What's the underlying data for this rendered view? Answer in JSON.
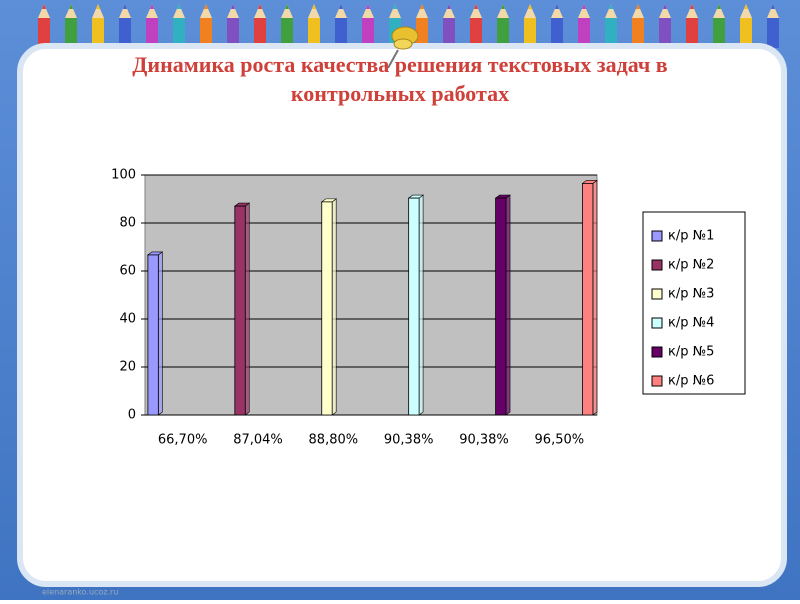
{
  "title_lines": [
    "Динамика роста качества решения текстовых задач в",
    "контрольных работах"
  ],
  "footer": "elenaranko.ucoz.ru",
  "chart_data": {
    "type": "bar",
    "categories": [
      "66,70%",
      "87,04%",
      "88,80%",
      "90,38%",
      "90,38%",
      "96,50%"
    ],
    "series": [
      {
        "name": "к/р №1",
        "color": "#9999ff",
        "values": [
          66.7,
          null,
          null,
          null,
          null,
          null
        ]
      },
      {
        "name": "к/р №2",
        "color": "#993366",
        "values": [
          null,
          87.04,
          null,
          null,
          null,
          null
        ]
      },
      {
        "name": "к/р №3",
        "color": "#ffffcc",
        "values": [
          null,
          null,
          88.8,
          null,
          null,
          null
        ]
      },
      {
        "name": "к/р №4",
        "color": "#ccffff",
        "values": [
          null,
          null,
          null,
          90.38,
          null,
          null
        ]
      },
      {
        "name": "к/р №5",
        "color": "#660066",
        "values": [
          null,
          null,
          null,
          null,
          90.38,
          null
        ]
      },
      {
        "name": "к/р №6",
        "color": "#ff8080",
        "values": [
          null,
          null,
          null,
          null,
          null,
          96.5
        ]
      }
    ],
    "ylim": [
      0,
      100
    ],
    "yticks": [
      0,
      20,
      40,
      60,
      80,
      100
    ],
    "grid": true,
    "legend": "right"
  }
}
